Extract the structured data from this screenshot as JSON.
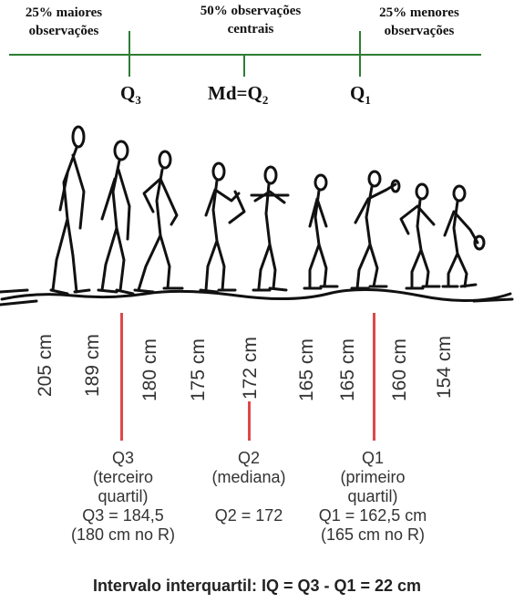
{
  "top": {
    "upper": "25% maiores observações",
    "middle": "50% observações centrais",
    "lower": "25% menores observações"
  },
  "labels": {
    "q3": "Q",
    "q3_sub": "3",
    "md": "Md=Q",
    "md_sub": "2",
    "q1": "Q",
    "q1_sub": "1"
  },
  "heights": [
    "205 cm",
    "189 cm",
    "180 cm",
    "175 cm",
    "172 cm",
    "165 cm",
    "165 cm",
    "160 cm",
    "154 cm"
  ],
  "quartiles": {
    "q3": {
      "name": "Q3",
      "desc": "(terceiro quartil)",
      "value": "Q3 = 184,5",
      "r": "(180 cm no R)"
    },
    "q2": {
      "name": "Q2",
      "desc": "(mediana)",
      "value": "Q2 = 172"
    },
    "q1": {
      "name": "Q1",
      "desc": "(primeiro quartil)",
      "value": "Q1 = 162,5 cm",
      "r": "(165 cm no R)"
    }
  },
  "footer": "Intervalo interquartil: IQ = Q3 - Q1 = 22 cm",
  "colors": {
    "green_line": "#2e7d32",
    "quartile_marker": "#e04848"
  }
}
